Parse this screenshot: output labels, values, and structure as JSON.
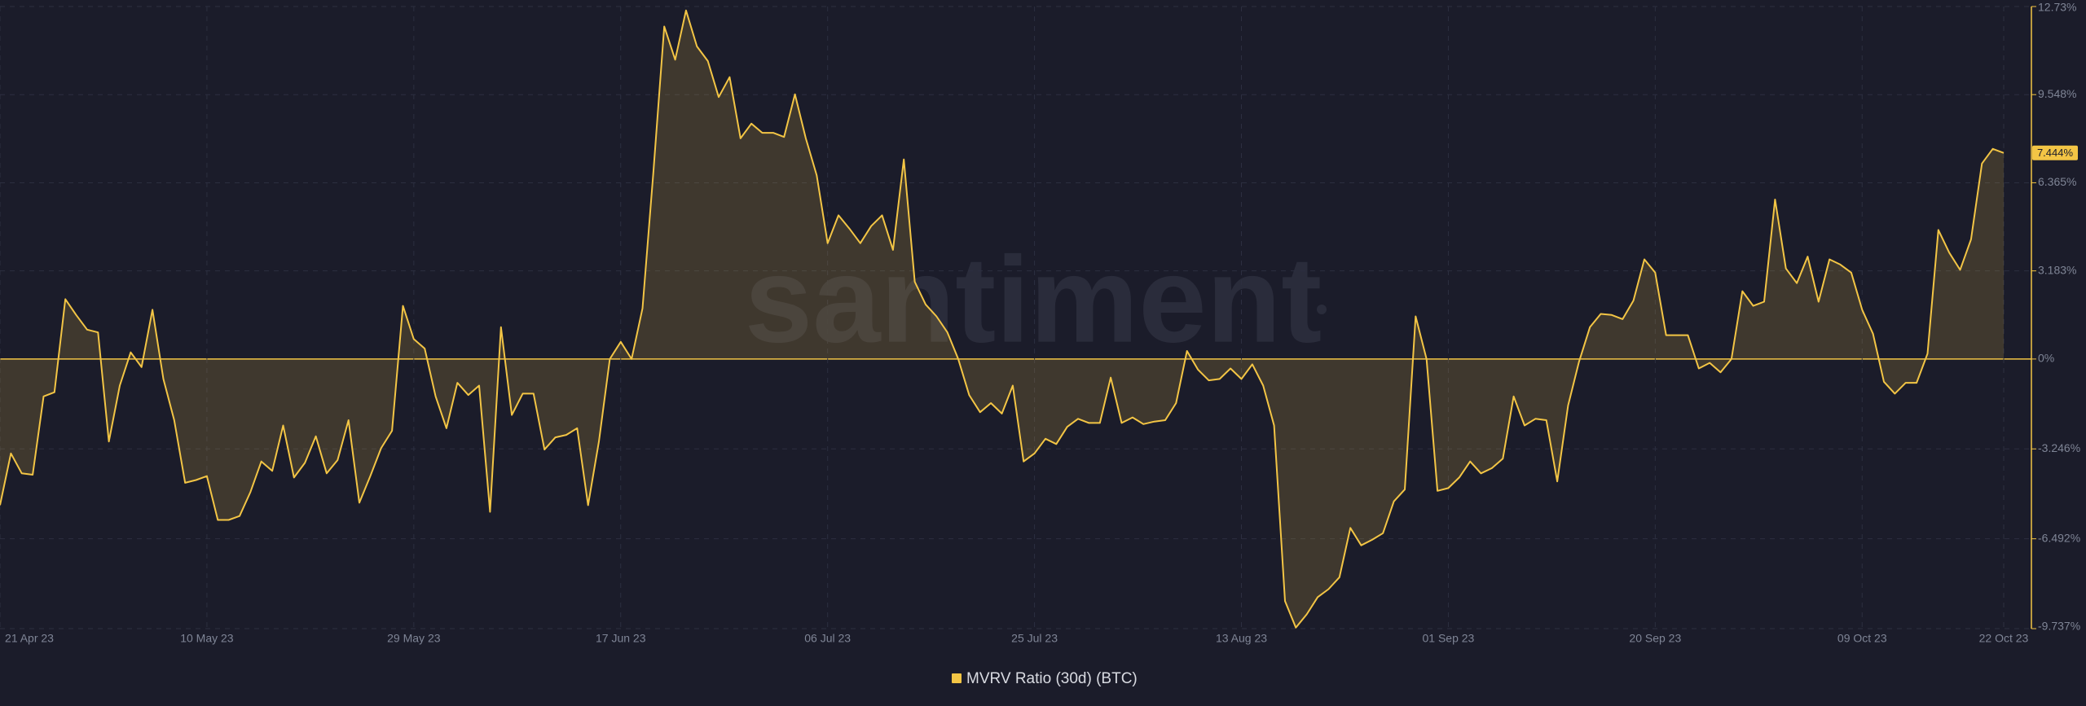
{
  "chart_data": {
    "type": "area-line",
    "watermark": "santiment",
    "ylim": [
      -9.737,
      12.73
    ],
    "yticks": [
      {
        "value": 12.73,
        "label": "12.73%"
      },
      {
        "value": 9.548,
        "label": "9.548%"
      },
      {
        "value": 6.365,
        "label": "6.365%"
      },
      {
        "value": 3.183,
        "label": "3.183%"
      },
      {
        "value": 0,
        "label": "0%"
      },
      {
        "value": -3.246,
        "label": "-3.246%"
      },
      {
        "value": -6.492,
        "label": "-6.492%"
      },
      {
        "value": -9.737,
        "label": "-9.737%"
      }
    ],
    "xlim": [
      "2023-04-21",
      "2023-10-22"
    ],
    "xticks": [
      {
        "value": "2023-04-21",
        "label": "21 Apr 23"
      },
      {
        "value": "2023-05-10",
        "label": "10 May 23"
      },
      {
        "value": "2023-05-29",
        "label": "29 May 23"
      },
      {
        "value": "2023-06-17",
        "label": "17 Jun 23"
      },
      {
        "value": "2023-07-06",
        "label": "06 Jul 23"
      },
      {
        "value": "2023-07-25",
        "label": "25 Jul 23"
      },
      {
        "value": "2023-08-13",
        "label": "13 Aug 23"
      },
      {
        "value": "2023-09-01",
        "label": "01 Sep 23"
      },
      {
        "value": "2023-09-20",
        "label": "20 Sep 23"
      },
      {
        "value": "2023-10-09",
        "label": "09 Oct 23"
      },
      {
        "value": "2023-10-22",
        "label": "22 Oct 23"
      }
    ],
    "grid": true,
    "x": [
      "2023-04-21",
      "2023-04-22",
      "2023-04-23",
      "2023-04-24",
      "2023-04-25",
      "2023-04-26",
      "2023-04-27",
      "2023-04-28",
      "2023-04-29",
      "2023-04-30",
      "2023-05-01",
      "2023-05-02",
      "2023-05-03",
      "2023-05-04",
      "2023-05-05",
      "2023-05-06",
      "2023-05-07",
      "2023-05-08",
      "2023-05-09",
      "2023-05-10",
      "2023-05-11",
      "2023-05-12",
      "2023-05-13",
      "2023-05-14",
      "2023-05-15",
      "2023-05-16",
      "2023-05-17",
      "2023-05-18",
      "2023-05-19",
      "2023-05-20",
      "2023-05-21",
      "2023-05-22",
      "2023-05-23",
      "2023-05-24",
      "2023-05-25",
      "2023-05-26",
      "2023-05-27",
      "2023-05-28",
      "2023-05-29",
      "2023-05-30",
      "2023-05-31",
      "2023-06-01",
      "2023-06-02",
      "2023-06-03",
      "2023-06-04",
      "2023-06-05",
      "2023-06-06",
      "2023-06-07",
      "2023-06-08",
      "2023-06-09",
      "2023-06-10",
      "2023-06-11",
      "2023-06-12",
      "2023-06-13",
      "2023-06-14",
      "2023-06-15",
      "2023-06-16",
      "2023-06-17",
      "2023-06-18",
      "2023-06-19",
      "2023-06-20",
      "2023-06-21",
      "2023-06-22",
      "2023-06-23",
      "2023-06-24",
      "2023-06-25",
      "2023-06-26",
      "2023-06-27",
      "2023-06-28",
      "2023-06-29",
      "2023-06-30",
      "2023-07-01",
      "2023-07-02",
      "2023-07-03",
      "2023-07-04",
      "2023-07-05",
      "2023-07-06",
      "2023-07-07",
      "2023-07-08",
      "2023-07-09",
      "2023-07-10",
      "2023-07-11",
      "2023-07-12",
      "2023-07-13",
      "2023-07-14",
      "2023-07-15",
      "2023-07-16",
      "2023-07-17",
      "2023-07-18",
      "2023-07-19",
      "2023-07-20",
      "2023-07-21",
      "2023-07-22",
      "2023-07-23",
      "2023-07-24",
      "2023-07-25",
      "2023-07-26",
      "2023-07-27",
      "2023-07-28",
      "2023-07-29",
      "2023-07-30",
      "2023-07-31",
      "2023-08-01",
      "2023-08-02",
      "2023-08-03",
      "2023-08-04",
      "2023-08-05",
      "2023-08-06",
      "2023-08-07",
      "2023-08-08",
      "2023-08-09",
      "2023-08-10",
      "2023-08-11",
      "2023-08-12",
      "2023-08-13",
      "2023-08-14",
      "2023-08-15",
      "2023-08-16",
      "2023-08-17",
      "2023-08-18",
      "2023-08-19",
      "2023-08-20",
      "2023-08-21",
      "2023-08-22",
      "2023-08-23",
      "2023-08-24",
      "2023-08-25",
      "2023-08-26",
      "2023-08-27",
      "2023-08-28",
      "2023-08-29",
      "2023-08-30",
      "2023-08-31",
      "2023-09-01",
      "2023-09-02",
      "2023-09-03",
      "2023-09-04",
      "2023-09-05",
      "2023-09-06",
      "2023-09-07",
      "2023-09-08",
      "2023-09-09",
      "2023-09-10",
      "2023-09-11",
      "2023-09-12",
      "2023-09-13",
      "2023-09-14",
      "2023-09-15",
      "2023-09-16",
      "2023-09-17",
      "2023-09-18",
      "2023-09-19",
      "2023-09-20",
      "2023-09-21",
      "2023-09-22",
      "2023-09-23",
      "2023-09-24",
      "2023-09-25",
      "2023-09-26",
      "2023-09-27",
      "2023-09-28",
      "2023-09-29",
      "2023-09-30",
      "2023-10-01",
      "2023-10-02",
      "2023-10-03",
      "2023-10-04",
      "2023-10-05",
      "2023-10-06",
      "2023-10-07",
      "2023-10-08",
      "2023-10-09",
      "2023-10-10",
      "2023-10-11",
      "2023-10-12",
      "2023-10-13",
      "2023-10-14",
      "2023-10-15",
      "2023-10-16",
      "2023-10-17",
      "2023-10-18",
      "2023-10-19",
      "2023-10-20",
      "2023-10-21",
      "2023-10-22"
    ],
    "series": [
      {
        "name": "MVRV Ratio (30d) (BTC)",
        "color": "#f3c545",
        "values": [
          -5.28,
          -3.41,
          -4.13,
          -4.18,
          -1.35,
          -1.2,
          2.16,
          1.59,
          1.06,
          0.96,
          -2.98,
          -0.96,
          0.24,
          -0.29,
          1.78,
          -0.72,
          -2.21,
          -4.47,
          -4.37,
          -4.23,
          -5.81,
          -5.81,
          -5.67,
          -4.8,
          -3.7,
          -4.04,
          -2.4,
          -4.28,
          -3.75,
          -2.79,
          -4.13,
          -3.65,
          -2.21,
          -5.19,
          -4.23,
          -3.22,
          -2.59,
          1.92,
          0.72,
          0.38,
          -1.35,
          -2.5,
          -0.86,
          -1.3,
          -0.96,
          -5.52,
          1.15,
          -2.02,
          -1.25,
          -1.25,
          -3.27,
          -2.83,
          -2.74,
          -2.5,
          -5.28,
          -2.98,
          0,
          0.62,
          0,
          1.83,
          6.73,
          12.01,
          10.81,
          12.59,
          11.29,
          10.76,
          9.46,
          10.18,
          7.97,
          8.5,
          8.17,
          8.17,
          8.02,
          9.56,
          7.97,
          6.63,
          4.18,
          5.19,
          4.71,
          4.18,
          4.8,
          5.19,
          3.94,
          7.21,
          2.79,
          1.97,
          1.54,
          0.96,
          0,
          -1.3,
          -1.92,
          -1.59,
          -1.97,
          -0.96,
          -3.7,
          -3.41,
          -2.88,
          -3.07,
          -2.45,
          -2.16,
          -2.31,
          -2.31,
          -0.67,
          -2.31,
          -2.11,
          -2.35,
          -2.26,
          -2.21,
          -1.59,
          0.29,
          -0.38,
          -0.77,
          -0.72,
          -0.34,
          -0.72,
          -0.19,
          -0.96,
          -2.4,
          -8.74,
          -9.7,
          -9.22,
          -8.6,
          -8.31,
          -7.88,
          -6.1,
          -6.73,
          -6.53,
          -6.29,
          -5.14,
          -4.71,
          1.54,
          0,
          -4.76,
          -4.66,
          -4.28,
          -3.7,
          -4.13,
          -3.94,
          -3.6,
          -1.35,
          -2.4,
          -2.16,
          -2.21,
          -4.42,
          -1.68,
          -0.1,
          1.15,
          1.63,
          1.59,
          1.44,
          2.11,
          3.6,
          3.12,
          0.86,
          0.86,
          0.86,
          -0.34,
          -0.14,
          -0.48,
          0,
          2.45,
          1.92,
          2.07,
          5.76,
          3.27,
          2.74,
          3.7,
          2.07,
          3.6,
          3.41,
          3.12,
          1.78,
          0.91,
          -0.82,
          -1.25,
          -0.86,
          -0.86,
          0.19,
          4.66,
          3.84,
          3.22,
          4.32,
          7.06,
          7.59,
          7.444
        ]
      }
    ],
    "current_value_label": "7.444%"
  }
}
